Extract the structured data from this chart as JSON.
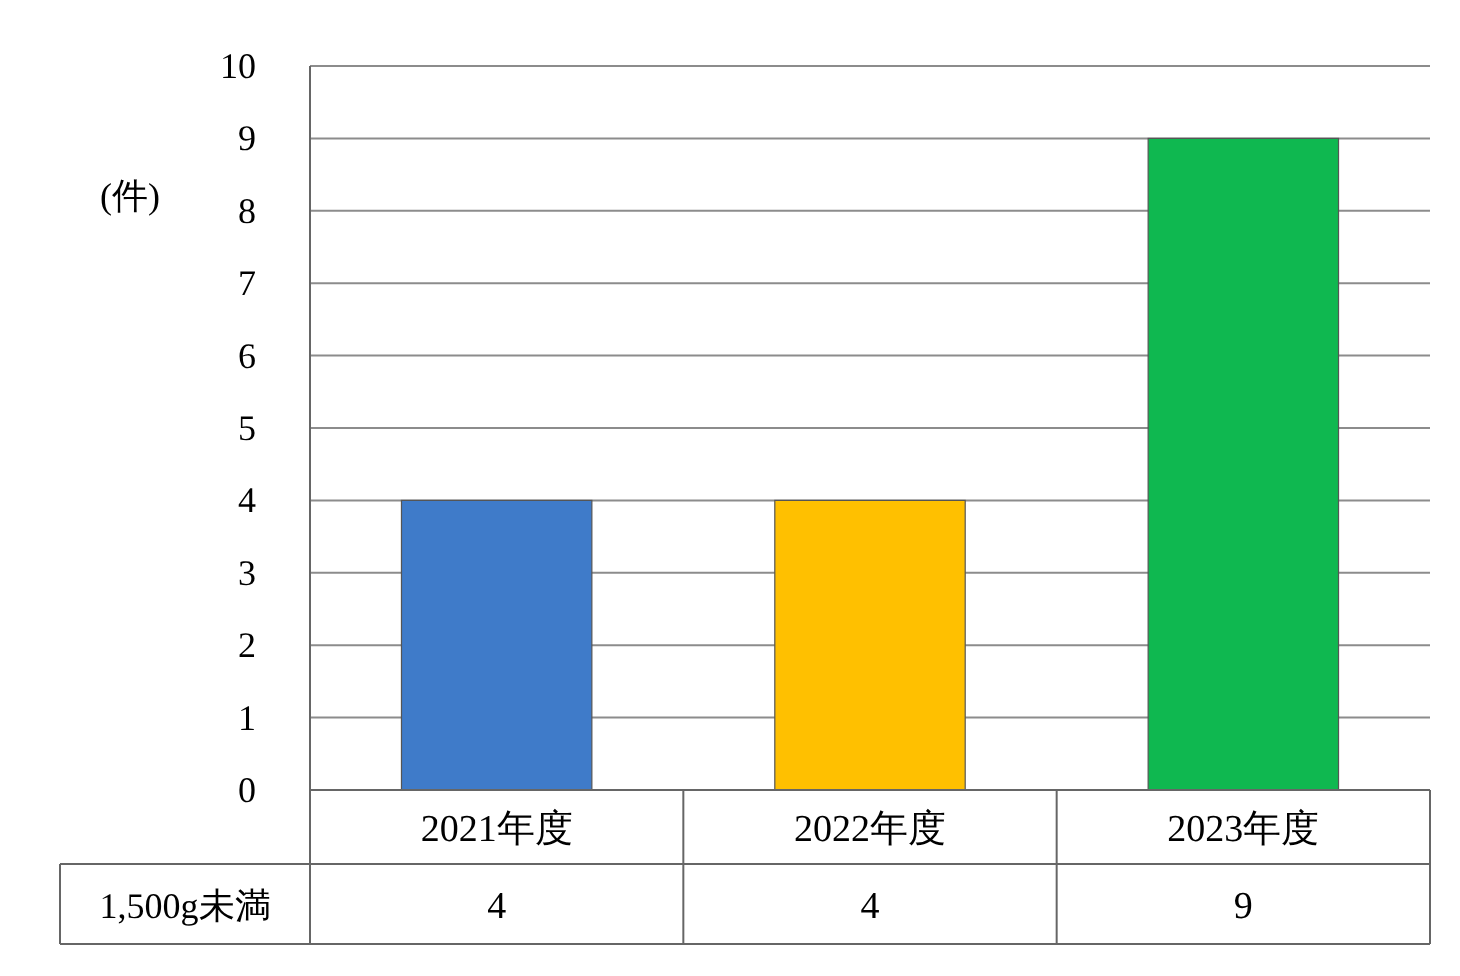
{
  "chart_data": {
    "type": "bar",
    "ylabel": "(件)",
    "categories": [
      "2021年度",
      "2022年度",
      "2023年度"
    ],
    "series": [
      {
        "name": "1,500g未満",
        "colors": [
          "#3f7bc9",
          "#ffc000",
          "#0fb850"
        ],
        "values": [
          4,
          4,
          9
        ]
      }
    ],
    "ylim": [
      0,
      10
    ],
    "yticks": [
      0,
      1,
      2,
      3,
      4,
      5,
      6,
      7,
      8,
      9,
      10
    ],
    "grid": "y",
    "data_labels": true
  }
}
